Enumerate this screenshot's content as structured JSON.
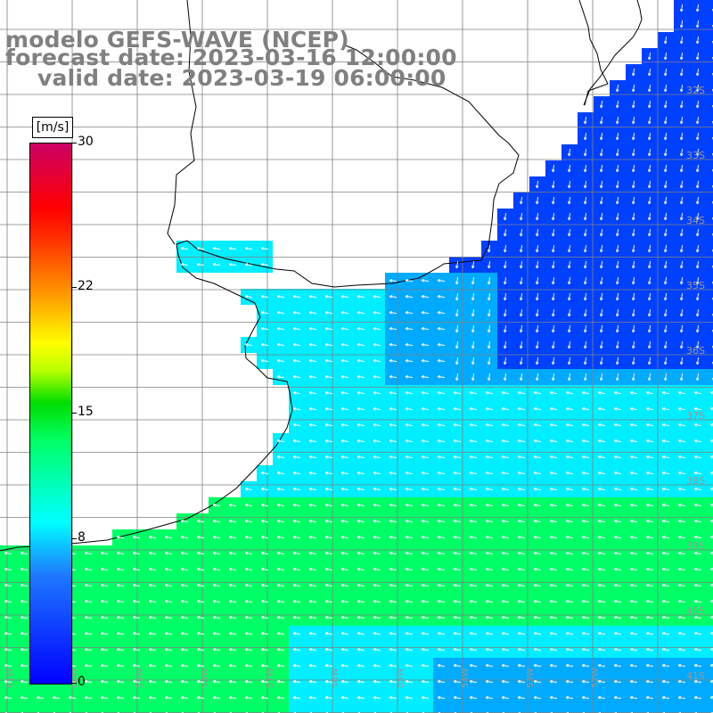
{
  "title": {
    "model": "modelo GEFS-WAVE (NCEP)",
    "forecast": "forecast date: 2023-03-16 12:00:00",
    "valid": "valid date: 2023-03-19 06:00:00"
  },
  "colorbar": {
    "unit": "[m/s]",
    "ticks": [
      {
        "label": "30",
        "value": 30
      },
      {
        "label": "22",
        "value": 22
      },
      {
        "label": "15",
        "value": 15
      },
      {
        "label": "8",
        "value": 8
      },
      {
        "label": "0",
        "value": 0
      }
    ],
    "min": 0,
    "max": 30
  },
  "map": {
    "lat_labels": [
      "32S",
      "33S",
      "34S",
      "35S",
      "36S",
      "37S",
      "38S",
      "39S",
      "40S",
      "41S"
    ],
    "lon_labels": [
      "61W",
      "60W",
      "59W",
      "58W",
      "57W",
      "56W",
      "55W",
      "54W",
      "53W",
      "52W"
    ],
    "colors": {
      "water_dark": "#0040ff",
      "water_mid": "#00aaff",
      "water_cyan": "#00eeff",
      "water_green": "#00ff66",
      "land": "#ffffff",
      "grid": "#808080",
      "coast": "#000000",
      "arrows": "#ffffff"
    }
  }
}
